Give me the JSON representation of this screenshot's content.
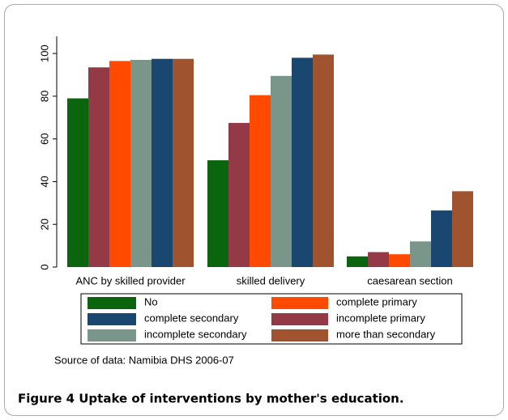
{
  "chart_data": {
    "type": "bar",
    "categories": [
      "ANC by skilled provider",
      "skilled delivery",
      "caesarean section"
    ],
    "series": [
      {
        "name": "No",
        "color": "#0b650e",
        "values": [
          79,
          50,
          5
        ]
      },
      {
        "name": "incomplete primary",
        "color": "#933a46",
        "values": [
          93.5,
          67.5,
          7
        ]
      },
      {
        "name": "complete primary",
        "color": "#ff4a00",
        "values": [
          96.5,
          80.5,
          6
        ]
      },
      {
        "name": "incomplete secondary",
        "color": "#7a968a",
        "values": [
          97,
          89.5,
          12
        ]
      },
      {
        "name": "complete secondary",
        "color": "#1a476f",
        "values": [
          97.5,
          98,
          26.5
        ]
      },
      {
        "name": "more than secondary",
        "color": "#a0532f",
        "values": [
          97.5,
          99.5,
          35.5
        ]
      }
    ],
    "ylim": [
      0,
      108
    ],
    "yticks": [
      0,
      20,
      40,
      60,
      80,
      100
    ],
    "source": "Source of data: Namibia DHS 2006-07",
    "caption": "Figure 4 Uptake of interventions by mother's education."
  }
}
